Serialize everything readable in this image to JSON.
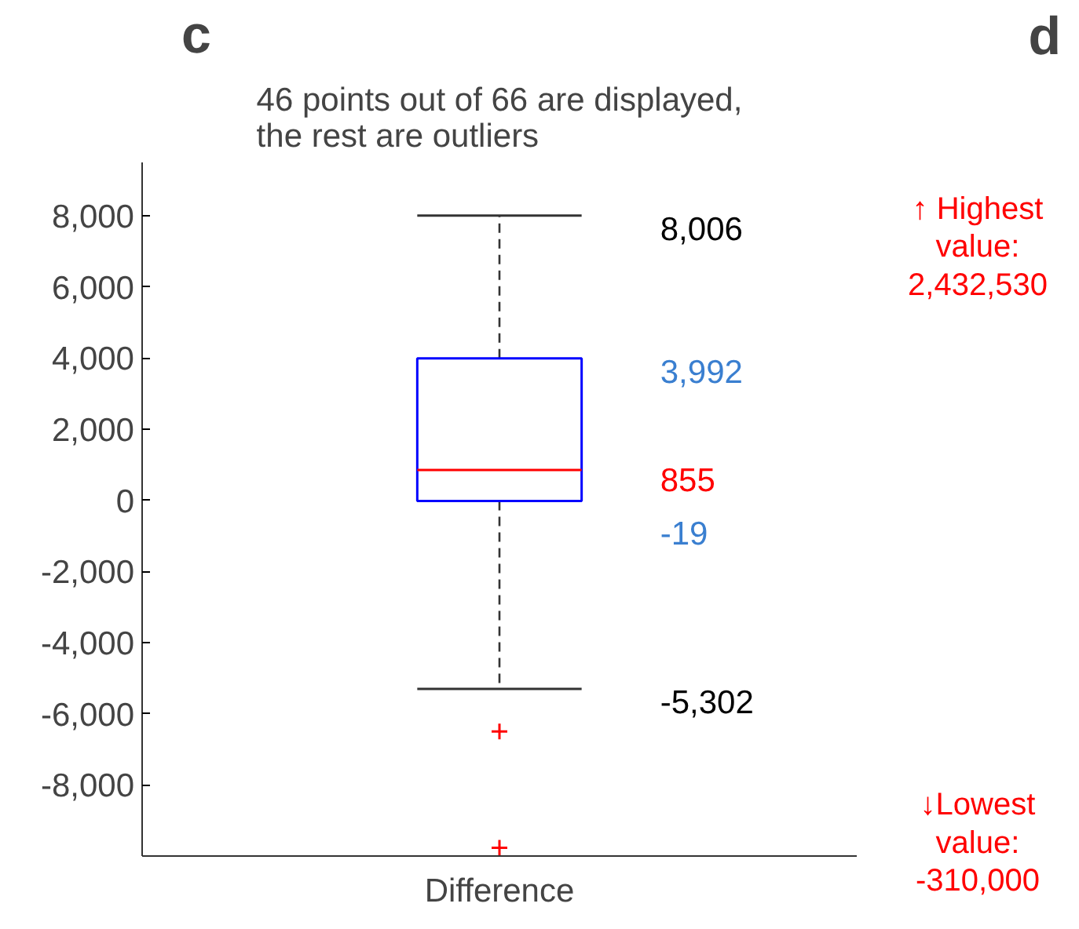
{
  "chart_data": {
    "type": "box",
    "title": "46 points out of 66 are displayed,\nthe rest are outliers",
    "categories": [
      "Difference"
    ],
    "series": [
      {
        "color": "#0000ff",
        "boxes": [
          {
            "low": -5302,
            "q1": -19,
            "median": 855,
            "q3": 3992,
            "high": 8006,
            "outliers": [
              -6500,
              -9770
            ]
          }
        ]
      }
    ],
    "ylim": [
      -10000,
      9500
    ],
    "yticks": [
      {
        "value": -8000,
        "label": "-8,000"
      },
      {
        "value": -6000,
        "label": "-6,000"
      },
      {
        "value": -4000,
        "label": "-4,000"
      },
      {
        "value": -2000,
        "label": "-2,000"
      },
      0,
      {
        "value": 2000,
        "label": "2,000"
      },
      {
        "value": 4000,
        "label": "4,000"
      },
      {
        "value": 6000,
        "label": "6,000"
      },
      {
        "value": 8000,
        "label": "8,000"
      }
    ],
    "grid": false,
    "annotations": [
      "c",
      "d",
      "8,006",
      "3,992",
      "855",
      "-19",
      "-5,302",
      "↑ Highest\nvalue:\n2,432,530",
      "↓Lowest\nvalue:\n-310,000"
    ]
  }
}
